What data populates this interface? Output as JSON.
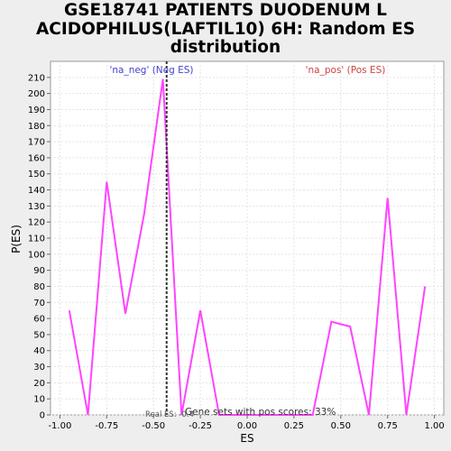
{
  "chart_data": {
    "type": "line",
    "title_lines": [
      "GSE18741 PATIENTS DUODENUM L",
      "ACIDOPHILUS(LAFTIL10) 6H: Random ES",
      "distribution"
    ],
    "xlabel": "ES",
    "ylabel": "P(ES)",
    "xlim": [
      -1.05,
      1.05
    ],
    "ylim": [
      0,
      220
    ],
    "x_ticks": [
      "-1.00",
      "-0.75",
      "-0.50",
      "-0.25",
      "0.00",
      "0.25",
      "0.50",
      "0.75",
      "1.00"
    ],
    "x_tick_values": [
      -1.0,
      -0.75,
      -0.5,
      -0.25,
      0.0,
      0.25,
      0.5,
      0.75,
      1.0
    ],
    "y_ticks": [
      0,
      10,
      20,
      30,
      40,
      50,
      60,
      70,
      80,
      90,
      100,
      110,
      120,
      130,
      140,
      150,
      160,
      170,
      180,
      190,
      200,
      210
    ],
    "grid": true,
    "series": [
      {
        "color": "#ff44ff",
        "x": [
          -0.95,
          -0.85,
          -0.75,
          -0.65,
          -0.55,
          -0.45,
          -0.35,
          -0.25,
          -0.15,
          -0.05,
          0.05,
          0.15,
          0.25,
          0.35,
          0.45,
          0.55,
          0.65,
          0.75,
          0.85,
          0.95
        ],
        "y": [
          65,
          0,
          145,
          63,
          125,
          209,
          0,
          65,
          0,
          0,
          0,
          0,
          0,
          0,
          58,
          55,
          0,
          135,
          0,
          80
        ]
      }
    ],
    "real_es": {
      "x": -0.43,
      "label": "Real ES: -0.4"
    },
    "annotations": {
      "neg_label": "'na_neg' (Neg ES)",
      "pos_label": "'na_pos' (Pos ES)",
      "gene_sets_label": "Gene sets with pos scores: 33%"
    },
    "colors": {
      "neg": "#4444cc",
      "pos": "#cc4444",
      "series": "#ff44ff",
      "real_es_line": "#333333"
    }
  }
}
